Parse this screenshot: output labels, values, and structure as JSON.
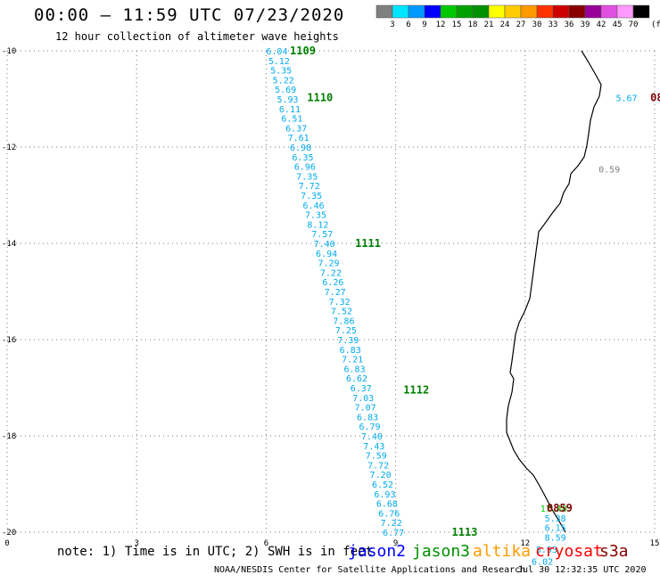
{
  "header": {
    "title": "00:00 – 11:59 UTC 07/23/2020",
    "subtitle": "12 hour collection of altimeter wave heights"
  },
  "color_scale": {
    "labels": [
      "3",
      "6",
      "9",
      "12",
      "15",
      "18",
      "21",
      "24",
      "27",
      "30",
      "33",
      "36",
      "39",
      "42",
      "45",
      "70"
    ],
    "unit_label": "(ft)",
    "colors": [
      "#7f7f7f",
      "#00e5ff",
      "#0099ff",
      "#0000ff",
      "#00c800",
      "#00a000",
      "#009000",
      "#ffff00",
      "#ffcc00",
      "#ff9900",
      "#ff3300",
      "#cc0000",
      "#880000",
      "#990099",
      "#e050e0",
      "#ff99ff",
      "#000000"
    ]
  },
  "axes": {
    "x_ticks": [
      0,
      3,
      6,
      9,
      12,
      15
    ],
    "y_ticks": [
      -10,
      -12,
      -14,
      -16,
      -18,
      -20
    ],
    "x_range": [
      0,
      15
    ],
    "y_range": [
      -20,
      -10
    ]
  },
  "tracks": [
    {
      "label": "1109",
      "label_color": "#008000",
      "lon": 6.55,
      "lat": -10.0
    },
    {
      "label": "1110",
      "label_color": "#008000",
      "lon": 6.95,
      "lat": -10.97
    },
    {
      "label": "1111",
      "label_color": "#008000",
      "lon": 8.06,
      "lat": -14.0
    },
    {
      "label": "1112",
      "label_color": "#008000",
      "lon": 9.18,
      "lat": -17.05
    },
    {
      "label": "1113",
      "label_color": "#008000",
      "lon": 10.3,
      "lat": -20.0
    },
    {
      "label": "0859",
      "label_color": "#800000",
      "lon": 12.5,
      "lat": -19.5
    },
    {
      "label": "08",
      "label_color": "#800000",
      "lon": 14.9,
      "lat": -10.97
    }
  ],
  "measurements": [
    {
      "value": "6.04",
      "lon": 6.0,
      "lat": -10.0,
      "color": "#00aaee"
    },
    {
      "value": "5.12",
      "lon": 6.05,
      "lat": -10.2,
      "color": "#00aaee"
    },
    {
      "value": "5.35",
      "lon": 6.1,
      "lat": -10.4,
      "color": "#00aaee"
    },
    {
      "value": "5.22",
      "lon": 6.15,
      "lat": -10.6,
      "color": "#00aaee"
    },
    {
      "value": "5.69",
      "lon": 6.2,
      "lat": -10.8,
      "color": "#00aaee"
    },
    {
      "value": "5.93",
      "lon": 6.25,
      "lat": -11.0,
      "color": "#00aaee"
    },
    {
      "value": "6.11",
      "lon": 6.3,
      "lat": -11.2,
      "color": "#00aaee"
    },
    {
      "value": "6.51",
      "lon": 6.35,
      "lat": -11.4,
      "color": "#00aaee"
    },
    {
      "value": "6.37",
      "lon": 6.45,
      "lat": -11.6,
      "color": "#00aaee"
    },
    {
      "value": "7.61",
      "lon": 6.5,
      "lat": -11.8,
      "color": "#00aaee"
    },
    {
      "value": "6.98",
      "lon": 6.55,
      "lat": -12.0,
      "color": "#00aaee"
    },
    {
      "value": "6.35",
      "lon": 6.6,
      "lat": -12.2,
      "color": "#00aaee"
    },
    {
      "value": "6.96",
      "lon": 6.65,
      "lat": -12.4,
      "color": "#00aaee"
    },
    {
      "value": "7.35",
      "lon": 6.7,
      "lat": -12.6,
      "color": "#00aaee"
    },
    {
      "value": "7.72",
      "lon": 6.75,
      "lat": -12.8,
      "color": "#00aaee"
    },
    {
      "value": "7.35",
      "lon": 6.8,
      "lat": -13.0,
      "color": "#00aaee"
    },
    {
      "value": "6.46",
      "lon": 6.85,
      "lat": -13.2,
      "color": "#00aaee"
    },
    {
      "value": "7.35",
      "lon": 6.9,
      "lat": -13.4,
      "color": "#00aaee"
    },
    {
      "value": "8.12",
      "lon": 6.95,
      "lat": -13.6,
      "color": "#00aaee"
    },
    {
      "value": "7.57",
      "lon": 7.05,
      "lat": -13.8,
      "color": "#00aaee"
    },
    {
      "value": "7.40",
      "lon": 7.1,
      "lat": -14.0,
      "color": "#00aaee"
    },
    {
      "value": "6.94",
      "lon": 7.15,
      "lat": -14.2,
      "color": "#00aaee"
    },
    {
      "value": "7.29",
      "lon": 7.2,
      "lat": -14.4,
      "color": "#00aaee"
    },
    {
      "value": "7.22",
      "lon": 7.25,
      "lat": -14.6,
      "color": "#00aaee"
    },
    {
      "value": "6.26",
      "lon": 7.3,
      "lat": -14.8,
      "color": "#00aaee"
    },
    {
      "value": "7.27",
      "lon": 7.35,
      "lat": -15.0,
      "color": "#00aaee"
    },
    {
      "value": "7.32",
      "lon": 7.45,
      "lat": -15.2,
      "color": "#00aaee"
    },
    {
      "value": "7.52",
      "lon": 7.5,
      "lat": -15.4,
      "color": "#00aaee"
    },
    {
      "value": "7.86",
      "lon": 7.55,
      "lat": -15.6,
      "color": "#00aaee"
    },
    {
      "value": "7.25",
      "lon": 7.6,
      "lat": -15.8,
      "color": "#00aaee"
    },
    {
      "value": "7.39",
      "lon": 7.65,
      "lat": -16.0,
      "color": "#00aaee"
    },
    {
      "value": "6.83",
      "lon": 7.7,
      "lat": -16.2,
      "color": "#00aaee"
    },
    {
      "value": "7.21",
      "lon": 7.75,
      "lat": -16.4,
      "color": "#00aaee"
    },
    {
      "value": "6.83",
      "lon": 7.8,
      "lat": -16.6,
      "color": "#00aaee"
    },
    {
      "value": "6.62",
      "lon": 7.85,
      "lat": -16.8,
      "color": "#00aaee"
    },
    {
      "value": "6.37",
      "lon": 7.95,
      "lat": -17.0,
      "color": "#00aaee"
    },
    {
      "value": "7.03",
      "lon": 8.0,
      "lat": -17.2,
      "color": "#00aaee"
    },
    {
      "value": "7.07",
      "lon": 8.05,
      "lat": -17.4,
      "color": "#00aaee"
    },
    {
      "value": "6.83",
      "lon": 8.1,
      "lat": -17.6,
      "color": "#00aaee"
    },
    {
      "value": "6.79",
      "lon": 8.15,
      "lat": -17.8,
      "color": "#00aaee"
    },
    {
      "value": "7.40",
      "lon": 8.2,
      "lat": -18.0,
      "color": "#00aaee"
    },
    {
      "value": "7.43",
      "lon": 8.25,
      "lat": -18.2,
      "color": "#00aaee"
    },
    {
      "value": "7.59",
      "lon": 8.3,
      "lat": -18.4,
      "color": "#00aaee"
    },
    {
      "value": "7.72",
      "lon": 8.35,
      "lat": -18.6,
      "color": "#00aaee"
    },
    {
      "value": "7.20",
      "lon": 8.4,
      "lat": -18.8,
      "color": "#00aaee"
    },
    {
      "value": "6.52",
      "lon": 8.45,
      "lat": -19.0,
      "color": "#00aaee"
    },
    {
      "value": "6.93",
      "lon": 8.5,
      "lat": -19.2,
      "color": "#00aaee"
    },
    {
      "value": "6.68",
      "lon": 8.55,
      "lat": -19.4,
      "color": "#00aaee"
    },
    {
      "value": "6.76",
      "lon": 8.6,
      "lat": -19.6,
      "color": "#00aaee"
    },
    {
      "value": "7.22",
      "lon": 8.65,
      "lat": -19.8,
      "color": "#00aaee"
    },
    {
      "value": "6.77",
      "lon": 8.7,
      "lat": -20.0,
      "color": "#00aaee"
    },
    {
      "value": "5.67",
      "lon": 14.1,
      "lat": -10.97,
      "color": "#00aaee"
    },
    {
      "value": "0.59",
      "lon": 13.7,
      "lat": -12.45,
      "color": "#7f7f7f"
    },
    {
      "value": "17.40",
      "lon": 12.35,
      "lat": -19.5,
      "color": "#00c800"
    },
    {
      "value": "5.38",
      "lon": 12.45,
      "lat": -19.7,
      "color": "#00aaee"
    },
    {
      "value": "6.15",
      "lon": 12.45,
      "lat": -19.9,
      "color": "#00aaee"
    },
    {
      "value": "8.59",
      "lon": 12.45,
      "lat": -20.1,
      "color": "#00aaee"
    },
    {
      "value": "5.93",
      "lon": 12.25,
      "lat": -20.35,
      "color": "#00aaee"
    },
    {
      "value": "6.02",
      "lon": 12.15,
      "lat": -20.6,
      "color": "#00aaee"
    }
  ],
  "footer": {
    "note": "note: 1) Time is in UTC; 2) SWH is in feet",
    "satellites": [
      {
        "name": "jason2",
        "color": "#0000ff"
      },
      {
        "name": "jason3",
        "color": "#009000"
      },
      {
        "name": "altika",
        "color": "#ff9900"
      },
      {
        "name": "cryosat",
        "color": "#ff0000"
      },
      {
        "name": "s3a",
        "color": "#880000"
      }
    ],
    "credit": "NOAA/NESDIS Center for Satellite Applications and Research",
    "timestamp": "Jul 30 12:32:35 UTC 2020"
  }
}
